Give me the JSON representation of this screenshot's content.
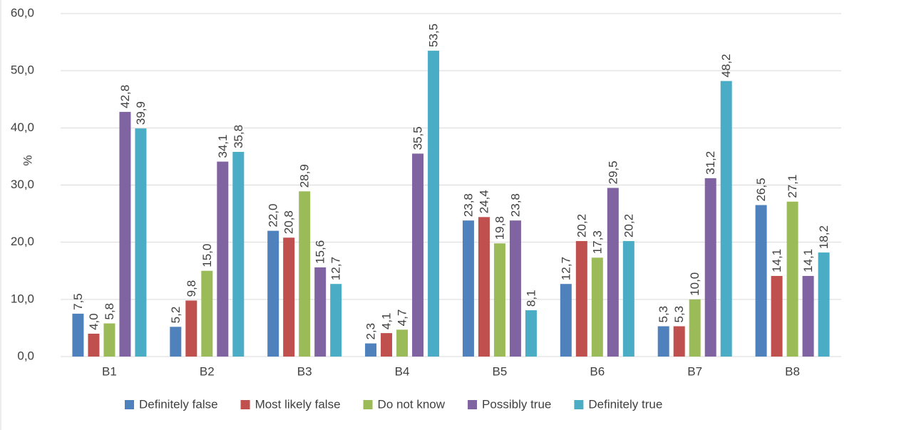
{
  "chart_data": {
    "type": "bar",
    "y_label": "%",
    "categories": [
      "B1",
      "B2",
      "B3",
      "B4",
      "B5",
      "B6",
      "B7",
      "B8"
    ],
    "series": [
      {
        "name": "Definitely false",
        "color": "#4f81bd",
        "values": [
          7.5,
          5.2,
          22.0,
          2.3,
          23.8,
          12.7,
          5.3,
          26.5
        ],
        "value_labels": [
          "7,5",
          "5,2",
          "22,0",
          "2,3",
          "23,8",
          "12,7",
          "5,3",
          "26,5"
        ]
      },
      {
        "name": "Most likely false",
        "color": "#c0504d",
        "values": [
          4.0,
          9.8,
          20.8,
          4.1,
          24.4,
          20.2,
          5.3,
          14.1
        ],
        "value_labels": [
          "4,0",
          "9,8",
          "20,8",
          "4,1",
          "24,4",
          "20,2",
          "5,3",
          "14,1"
        ]
      },
      {
        "name": "Do not know",
        "color": "#9bbb59",
        "values": [
          5.8,
          15.0,
          28.9,
          4.7,
          19.8,
          17.3,
          10.0,
          27.1
        ],
        "value_labels": [
          "5,8",
          "15,0",
          "28,9",
          "4,7",
          "19,8",
          "17,3",
          "10,0",
          "27,1"
        ]
      },
      {
        "name": "Possibly true",
        "color": "#8064a2",
        "values": [
          42.8,
          34.1,
          15.6,
          35.5,
          23.8,
          29.5,
          31.2,
          14.1
        ],
        "value_labels": [
          "42,8",
          "34,1",
          "15,6",
          "35,5",
          "23,8",
          "29,5",
          "31,2",
          "14,1"
        ]
      },
      {
        "name": "Definitely true",
        "color": "#4bacc6",
        "values": [
          39.9,
          35.8,
          12.7,
          53.5,
          8.1,
          20.2,
          48.2,
          18.2
        ],
        "value_labels": [
          "39,9",
          "35,8",
          "12,7",
          "53,5",
          "8,1",
          "20,2",
          "48,2",
          "18,2"
        ]
      }
    ],
    "ylim": [
      0,
      60
    ],
    "yticks": [
      {
        "value": 0,
        "label": "0,0"
      },
      {
        "value": 10,
        "label": "10,0"
      },
      {
        "value": 20,
        "label": "20,0"
      },
      {
        "value": 30,
        "label": "30,0"
      },
      {
        "value": 40,
        "label": "40,0"
      },
      {
        "value": 50,
        "label": "50,0"
      },
      {
        "value": 60,
        "label": "60,0"
      }
    ],
    "grid": true,
    "legend": "bottom"
  }
}
